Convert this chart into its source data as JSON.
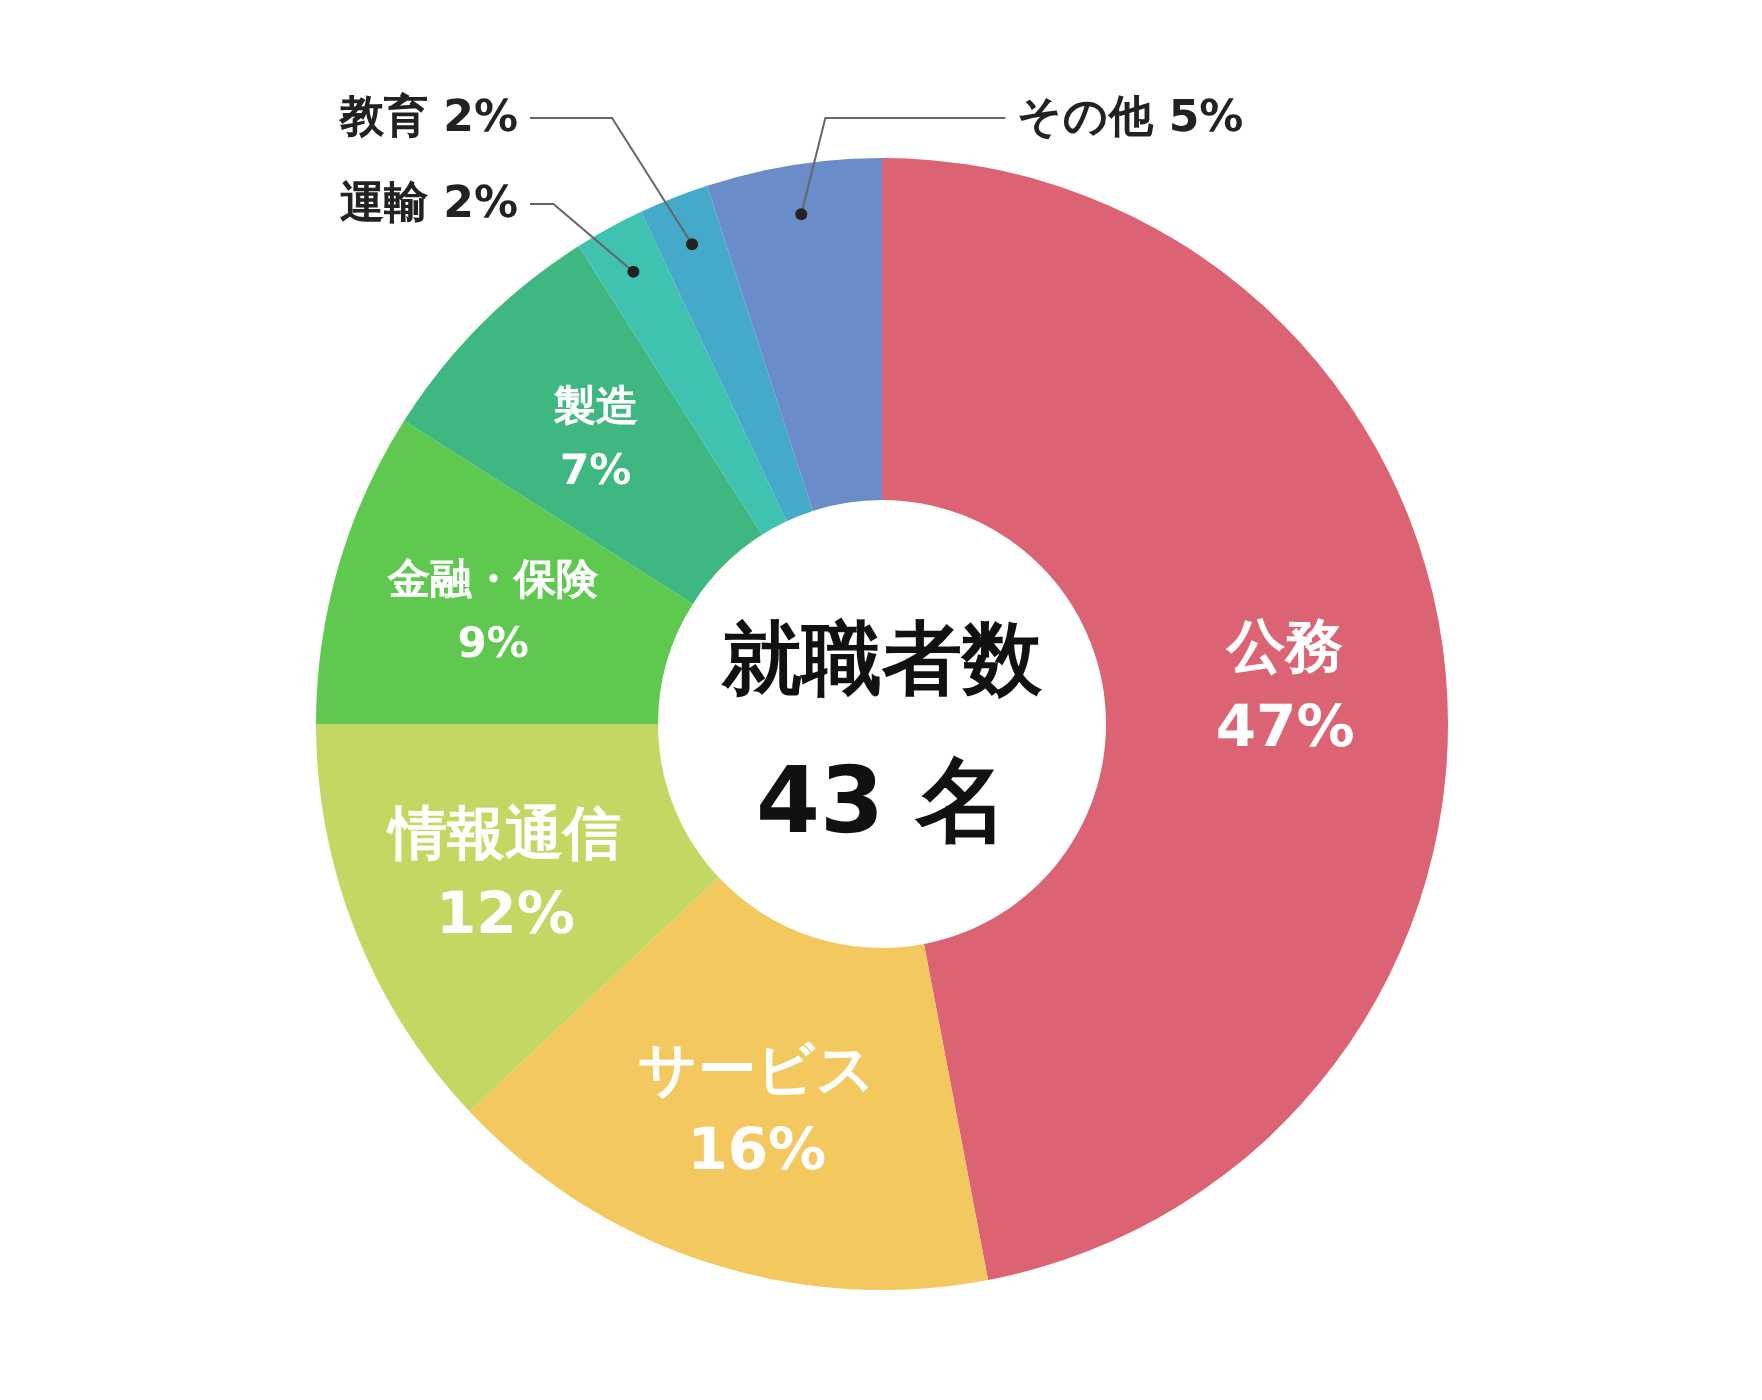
{
  "chart_data": {
    "type": "donut",
    "title": "就職者数",
    "subtitle": "43 名",
    "categories": [
      "公務",
      "サービス",
      "情報通信",
      "金融・保険",
      "製造",
      "運輸",
      "教育",
      "その他"
    ],
    "values": [
      47,
      16,
      12,
      9,
      7,
      2,
      2,
      5
    ],
    "value_labels": [
      "47%",
      "16%",
      "12%",
      "9%",
      "7%",
      "2%",
      "2%",
      "5%"
    ],
    "colors": [
      "#dc6374",
      "#f3c85e",
      "#c3d862",
      "#5fc94f",
      "#3fb780",
      "#40c2b0",
      "#45a9c9",
      "#6a8cc8"
    ]
  }
}
